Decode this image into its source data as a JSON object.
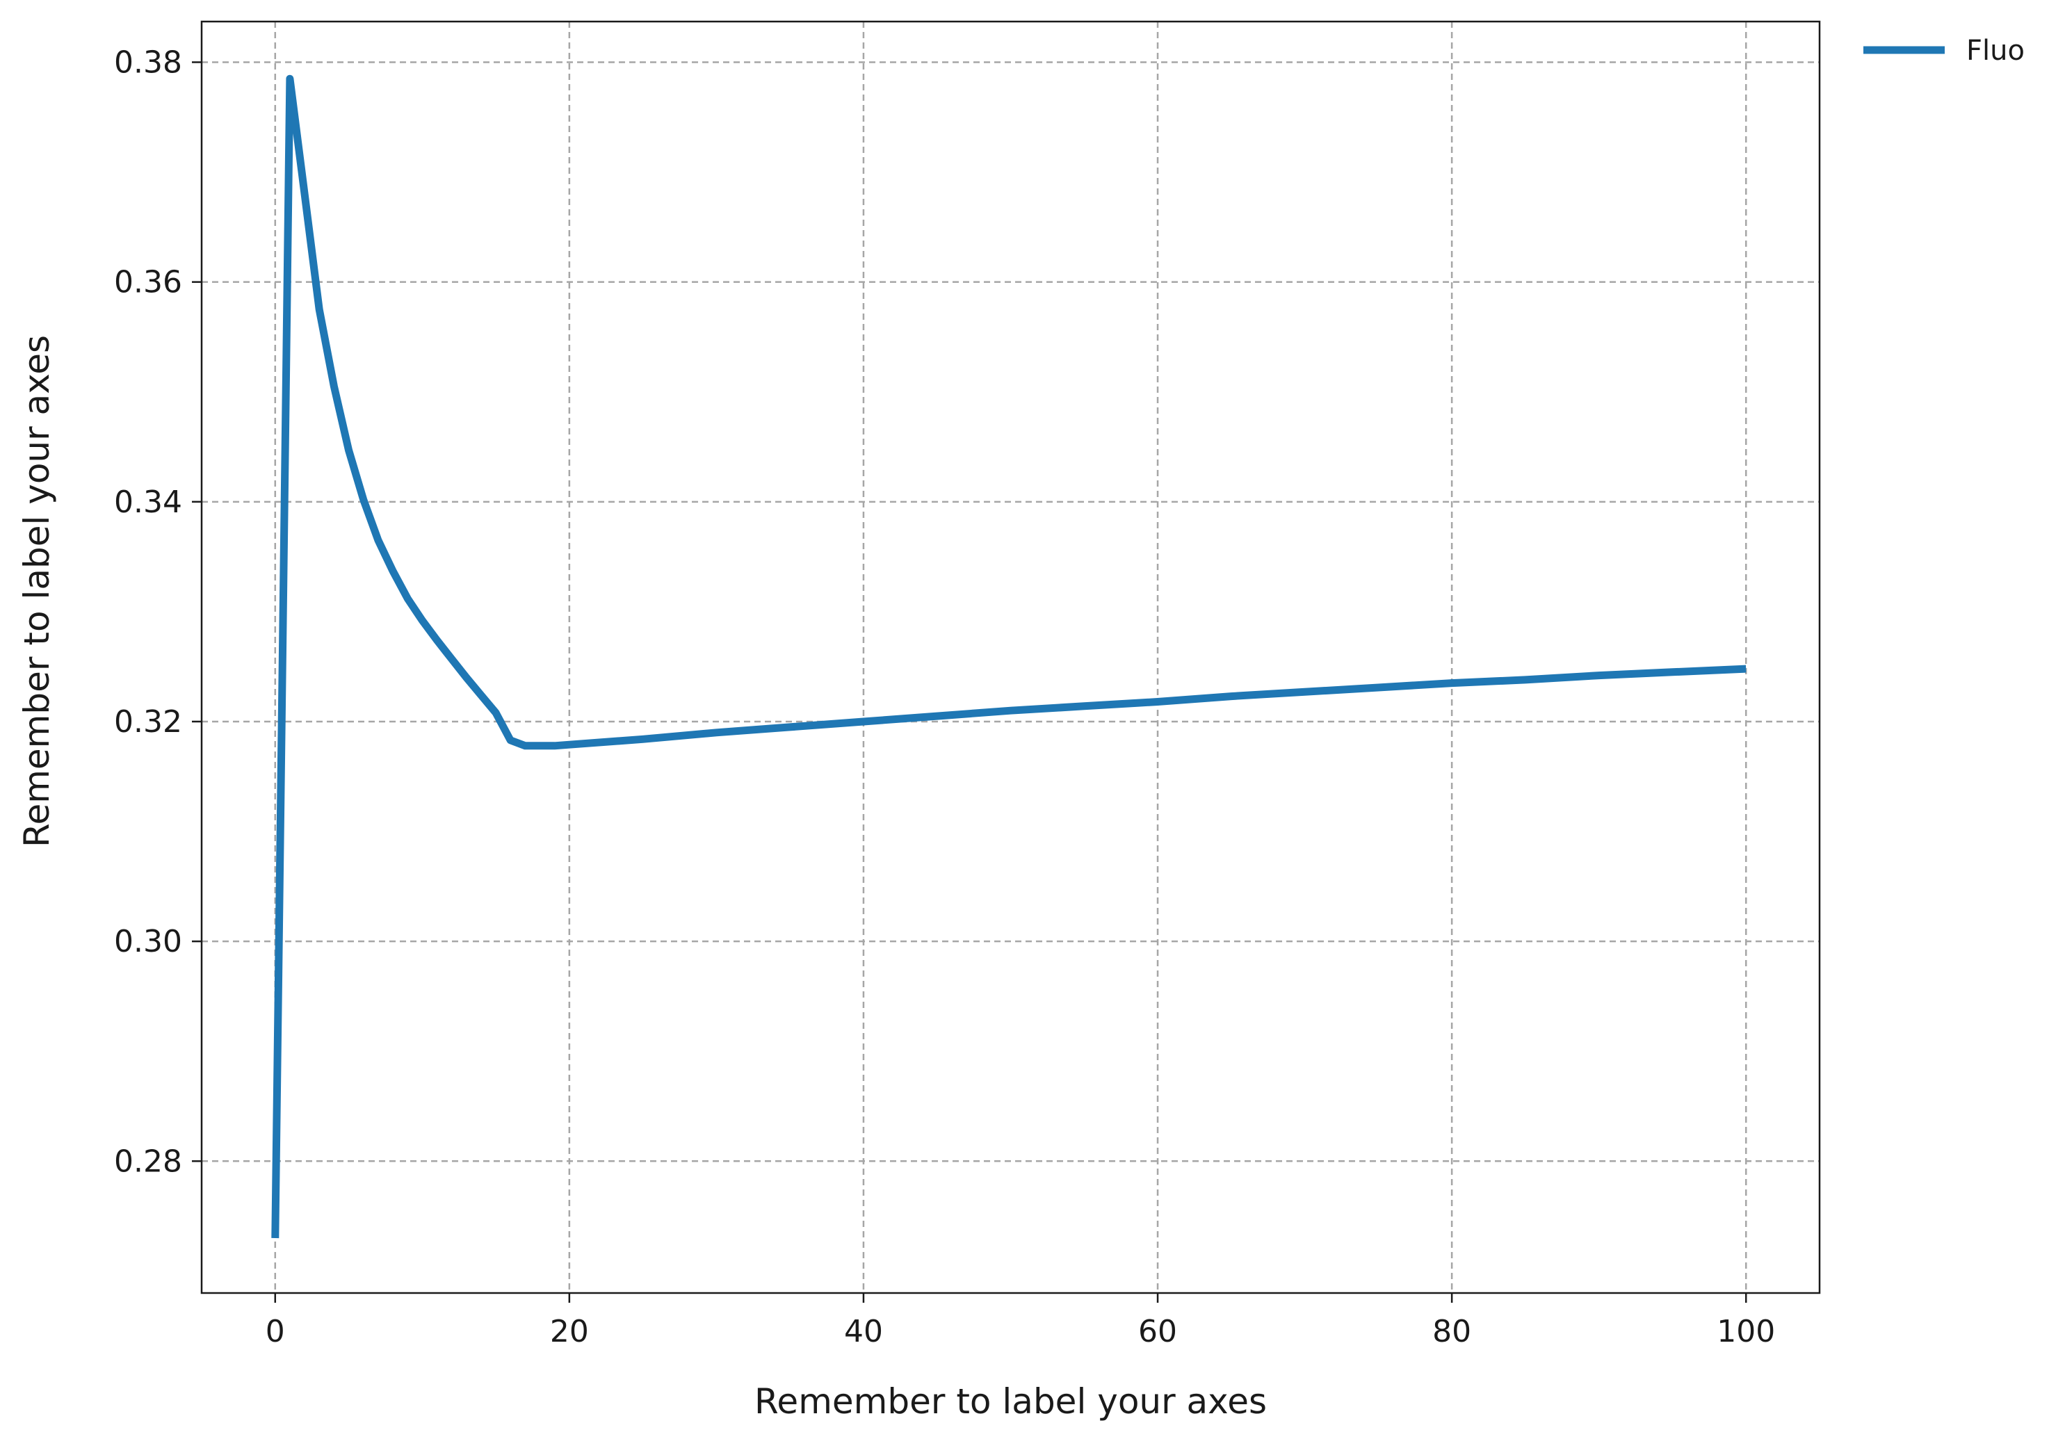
{
  "chart_data": {
    "type": "line",
    "title": "",
    "xlabel": "Remember to label your axes",
    "ylabel": "Remember to label your axes",
    "xlim": [
      -5,
      105
    ],
    "ylim": [
      0.268,
      0.3837
    ],
    "xticks": [
      0,
      20,
      40,
      60,
      80,
      100
    ],
    "xtick_labels": [
      "0",
      "20",
      "40",
      "60",
      "80",
      "100"
    ],
    "yticks": [
      0.28,
      0.3,
      0.32,
      0.34,
      0.36,
      0.38
    ],
    "ytick_labels": [
      "0.28",
      "0.30",
      "0.32",
      "0.34",
      "0.36",
      "0.38"
    ],
    "grid": true,
    "legend_position": "outside-top-right",
    "colors": {
      "series": "#1f77b4",
      "grid": "#a6a6a6",
      "axis": "#1a1a1a"
    },
    "series": [
      {
        "name": "Fluo",
        "x": [
          0,
          1,
          2,
          3,
          4,
          5,
          6,
          7,
          8,
          9,
          10,
          11,
          12,
          13,
          14,
          15,
          16,
          17,
          18,
          19,
          20,
          25,
          30,
          35,
          40,
          45,
          50,
          55,
          60,
          65,
          70,
          75,
          80,
          85,
          90,
          95,
          100
        ],
        "y": [
          0.273,
          0.3785,
          0.368,
          0.3575,
          0.3505,
          0.3447,
          0.3402,
          0.3365,
          0.3337,
          0.3312,
          0.3292,
          0.3274,
          0.3257,
          0.324,
          0.3224,
          0.3208,
          0.3183,
          0.3178,
          0.3178,
          0.3178,
          0.3179,
          0.3184,
          0.319,
          0.3195,
          0.32,
          0.3205,
          0.321,
          0.3214,
          0.3218,
          0.3223,
          0.3227,
          0.3231,
          0.3235,
          0.3238,
          0.3242,
          0.3245,
          0.3248
        ]
      }
    ]
  }
}
